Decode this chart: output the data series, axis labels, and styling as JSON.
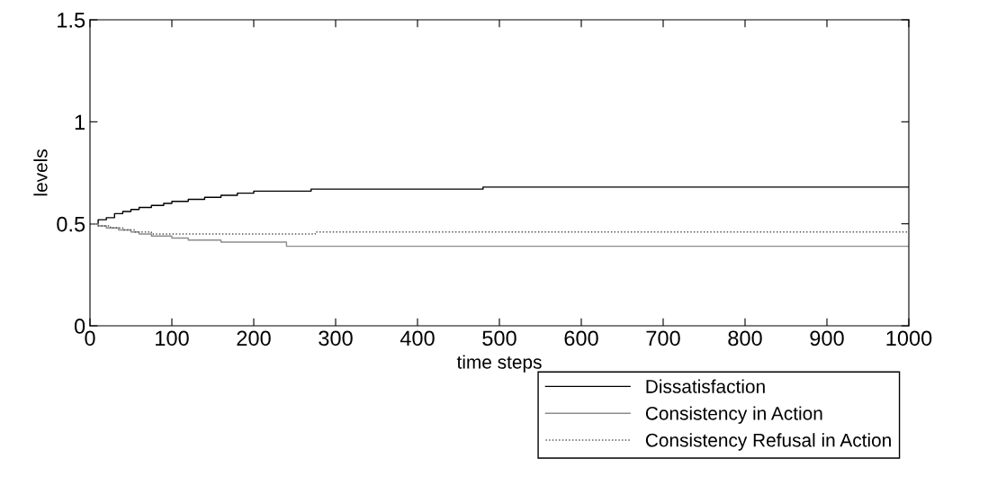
{
  "chart_data": {
    "type": "step",
    "xlabel": "time steps",
    "ylabel": "levels",
    "xlim": [
      0,
      1000
    ],
    "ylim": [
      0,
      1.5
    ],
    "xticks": [
      0,
      100,
      200,
      300,
      400,
      500,
      600,
      700,
      800,
      900,
      1000
    ],
    "yticks": [
      0,
      0.5,
      1,
      1.5
    ],
    "grid": false,
    "legend": "bottom right",
    "series": [
      {
        "name": "Dissatisfaction",
        "color": "#000000",
        "line_style": "solid",
        "x": [
          0,
          10,
          20,
          30,
          40,
          50,
          60,
          75,
          90,
          100,
          120,
          140,
          160,
          180,
          200,
          240,
          270,
          300,
          380,
          480,
          1000
        ],
        "values": [
          0.5,
          0.52,
          0.53,
          0.55,
          0.56,
          0.57,
          0.58,
          0.59,
          0.6,
          0.61,
          0.62,
          0.63,
          0.64,
          0.65,
          0.66,
          0.66,
          0.67,
          0.67,
          0.67,
          0.68,
          0.68
        ]
      },
      {
        "name": "Consistency in Action",
        "color": "#8c8c8c",
        "line_style": "solid",
        "x": [
          0,
          10,
          20,
          35,
          50,
          60,
          75,
          100,
          120,
          160,
          240,
          1000
        ],
        "values": [
          0.5,
          0.49,
          0.48,
          0.47,
          0.46,
          0.45,
          0.44,
          0.43,
          0.42,
          0.41,
          0.39,
          0.39
        ]
      },
      {
        "name": "Consistency Refusal in Action",
        "color": "#505050",
        "line_style": "dotted",
        "x": [
          0,
          10,
          25,
          40,
          55,
          75,
          275,
          1000
        ],
        "values": [
          0.5,
          0.49,
          0.48,
          0.47,
          0.46,
          0.45,
          0.46,
          0.46
        ]
      }
    ]
  }
}
